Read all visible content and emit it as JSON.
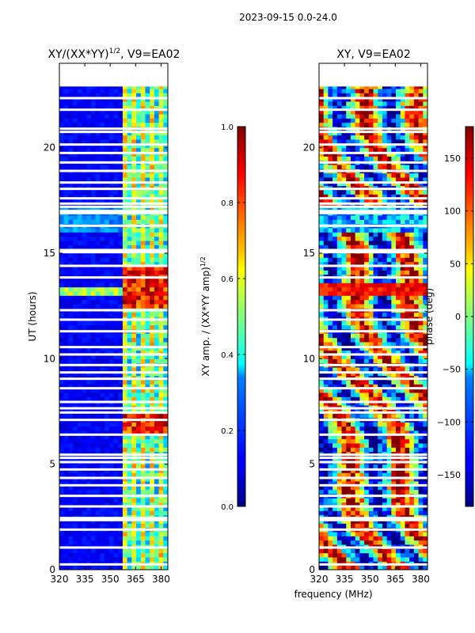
{
  "figure": {
    "suptitle": "2023-09-15 0.0-24.0",
    "shared_xlabel": "frequency (MHz)"
  },
  "chart_data": [
    {
      "type": "heatmap",
      "title": "XY/(XX*YY)",
      "title_superscript": "1/2",
      "title_suffix": ", V9=EA02",
      "xlabel": "",
      "ylabel": "UT (hours)",
      "x_range": [
        320,
        384
      ],
      "y_range": [
        0,
        24
      ],
      "x_ticks": [
        320,
        335,
        350,
        365,
        380
      ],
      "y_ticks": [
        0,
        5,
        10,
        15,
        20
      ],
      "data_y_extent": [
        0,
        22.9
      ],
      "colorbar": {
        "label": "XY amp. / (XX*YY amp)",
        "label_superscript": "1/2",
        "range": [
          0.0,
          1.0
        ],
        "ticks": [
          "0.0",
          "0.2",
          "0.4",
          "0.6",
          "0.8",
          "1.0"
        ],
        "colormap": "jet"
      }
    },
    {
      "type": "heatmap",
      "title": "XY, V9=EA02",
      "xlabel": "frequency (MHz)",
      "ylabel": "",
      "x_range": [
        320,
        384
      ],
      "y_range": [
        0,
        24
      ],
      "x_ticks": [
        320,
        335,
        350,
        365,
        380
      ],
      "y_ticks": [
        0,
        5,
        10,
        15,
        20
      ],
      "data_y_extent": [
        0,
        22.9
      ],
      "colorbar": {
        "label": "phase (deg)",
        "range": [
          -180,
          180
        ],
        "ticks": [
          "−150",
          "−100",
          "−50",
          "0",
          "50",
          "100",
          "150"
        ],
        "colormap": "jet"
      }
    }
  ],
  "gaps_hours": [
    0.25,
    1.05,
    1.9,
    2.35,
    2.45,
    3.0,
    3.5,
    4.0,
    4.35,
    4.75,
    5.1,
    5.3,
    5.45,
    6.4,
    7.1,
    7.45,
    7.65,
    7.95,
    8.6,
    9.05,
    9.35,
    9.7,
    10.2,
    10.55,
    11.3,
    11.85,
    12.3,
    13.85,
    14.4,
    15.05,
    15.15,
    16.3,
    16.9,
    17.0,
    17.2,
    17.35,
    17.6,
    18.05,
    18.35,
    18.9,
    19.3,
    19.75,
    20.15,
    20.75,
    20.9,
    21.8,
    22.35
  ]
}
